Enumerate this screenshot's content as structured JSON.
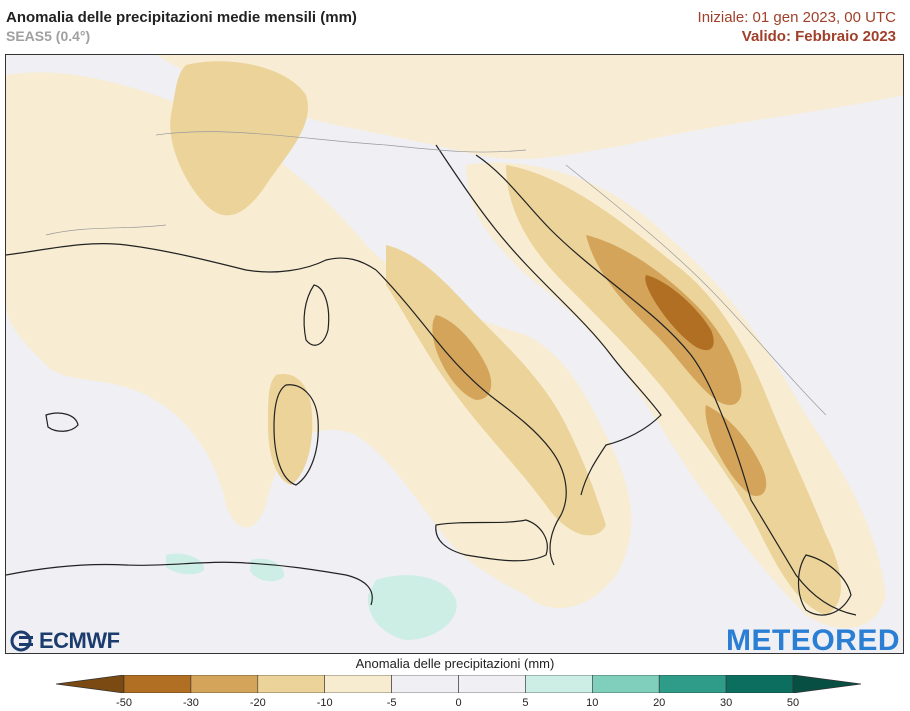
{
  "header": {
    "title": "Anomalia delle precipitazioni medie mensili (mm)",
    "subtitle": "SEAS5 (0.4°)",
    "init_text": "Iniziale: 01 gen 2023, 00 UTC",
    "valid_text": "Valido: Febbraio 2023"
  },
  "logos": {
    "left": "ECMWF",
    "right": "METEORED"
  },
  "colorbar": {
    "title": "Anomalia delle precipitazioni (mm)",
    "ticks": [
      "-50",
      "-30",
      "-20",
      "-10",
      "-5",
      "0",
      "5",
      "10",
      "20",
      "30",
      "50"
    ],
    "colors": [
      "#7a4a12",
      "#b06f22",
      "#d3a45a",
      "#ebd39a",
      "#f8ecd0",
      "#efeff4",
      "#efeff4",
      "#cdeee4",
      "#7fcfbc",
      "#2f9c8a",
      "#0b6e5e",
      "#064f42"
    ]
  },
  "map": {
    "sea_color": "#efeff4",
    "land_color": "#efeff4",
    "dry_light": "#f8ecd0",
    "dry_mid": "#ebd39a",
    "dry_strong": "#d3a45a",
    "dry_max": "#b06f22",
    "wet_light": "#cdeee4"
  }
}
